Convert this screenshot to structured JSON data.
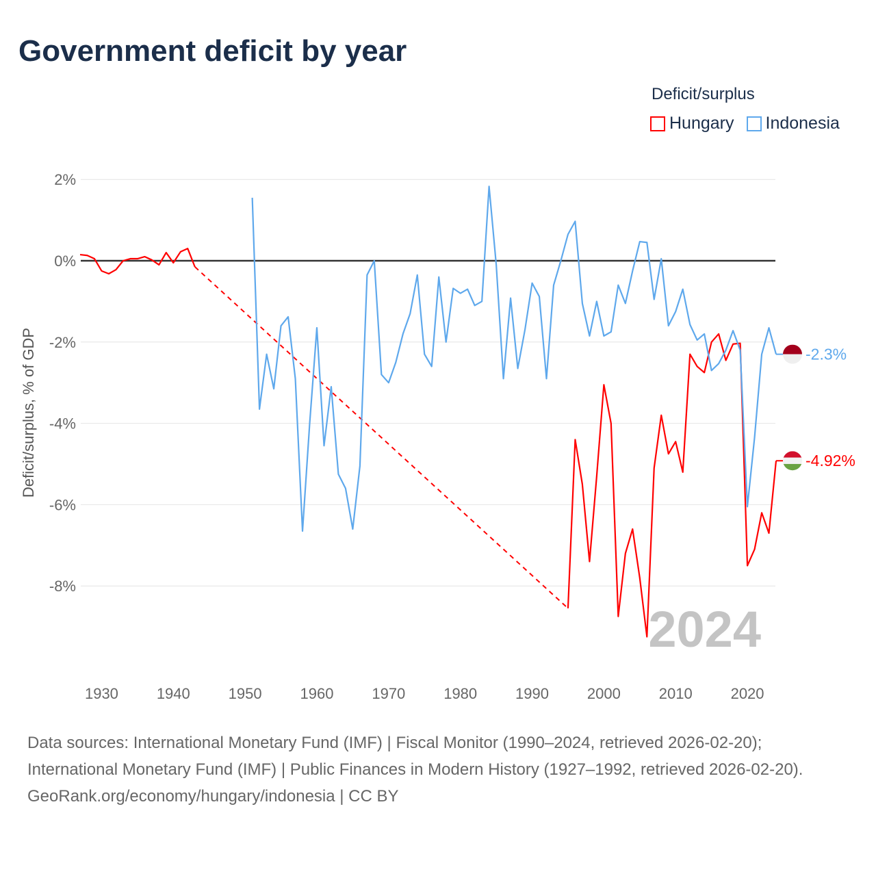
{
  "title": "Government deficit by year",
  "legend": {
    "title": "Deficit/surplus",
    "items": [
      {
        "label": "Hungary",
        "color": "#ff0000"
      },
      {
        "label": "Indonesia",
        "color": "#5ea8ec"
      }
    ]
  },
  "chart_data": {
    "type": "line",
    "title": "Government deficit by year",
    "xlabel": "",
    "ylabel": "Deficit/surplus, % of GDP",
    "xlim": [
      1927,
      2024
    ],
    "ylim": [
      -10,
      2.5
    ],
    "x_ticks": [
      1930,
      1940,
      1950,
      1960,
      1970,
      1980,
      1990,
      2000,
      2010,
      2020
    ],
    "y_ticks": [
      2,
      0,
      -2,
      -4,
      -6,
      -8
    ],
    "y_tick_labels": [
      "2%",
      "0%",
      "-2%",
      "-4%",
      "-6%",
      "-8%"
    ],
    "grid": true,
    "watermark_year": "2024",
    "series": [
      {
        "name": "Hungary",
        "color": "#ff0000",
        "end_label": "-4.92%",
        "x": [
          1927,
          1928,
          1929,
          1930,
          1931,
          1932,
          1933,
          1934,
          1935,
          1936,
          1937,
          1938,
          1939,
          1940,
          1941,
          1942,
          1943,
          1995,
          1996,
          1997,
          1998,
          1999,
          2000,
          2001,
          2002,
          2003,
          2004,
          2005,
          2006,
          2007,
          2008,
          2009,
          2010,
          2011,
          2012,
          2013,
          2014,
          2015,
          2016,
          2017,
          2018,
          2019,
          2020,
          2021,
          2022,
          2023,
          2024
        ],
        "values": [
          0.15,
          0.13,
          0.05,
          -0.25,
          -0.32,
          -0.22,
          0,
          0.05,
          0.05,
          0.1,
          0.02,
          -0.1,
          0.2,
          -0.05,
          0.22,
          0.3,
          -0.15,
          -8.55,
          -4.4,
          -5.5,
          -7.4,
          -5.3,
          -3.05,
          -4.0,
          -8.75,
          -7.2,
          -6.6,
          -7.8,
          -9.25,
          -5.1,
          -3.8,
          -4.75,
          -4.45,
          -5.2,
          -2.3,
          -2.6,
          -2.75,
          -2.0,
          -1.8,
          -2.45,
          -2.05,
          -2.03,
          -7.5,
          -7.1,
          -6.2,
          -6.7,
          -4.92
        ]
      },
      {
        "name": "Indonesia",
        "color": "#5ea8ec",
        "end_label": "-2.3%",
        "x": [
          1951,
          1952,
          1953,
          1954,
          1955,
          1956,
          1957,
          1958,
          1959,
          1960,
          1961,
          1962,
          1963,
          1964,
          1965,
          1966,
          1967,
          1968,
          1969,
          1970,
          1971,
          1972,
          1973,
          1974,
          1975,
          1976,
          1977,
          1978,
          1979,
          1980,
          1981,
          1982,
          1983,
          1984,
          1985,
          1986,
          1987,
          1988,
          1989,
          1990,
          1991,
          1992,
          1993,
          1994,
          1995,
          1996,
          1997,
          1998,
          1999,
          2000,
          2001,
          2002,
          2003,
          2004,
          2005,
          2006,
          2007,
          2008,
          2009,
          2010,
          2011,
          2012,
          2013,
          2014,
          2015,
          2016,
          2017,
          2018,
          2019,
          2020,
          2021,
          2022,
          2023,
          2024
        ],
        "values": [
          1.55,
          -3.65,
          -2.3,
          -3.15,
          -1.6,
          -1.38,
          -2.9,
          -6.65,
          -4.0,
          -1.65,
          -4.55,
          -3.1,
          -5.25,
          -5.6,
          -6.6,
          -5.05,
          -0.35,
          0.0,
          -2.8,
          -3.0,
          -2.5,
          -1.8,
          -1.3,
          -0.35,
          -2.3,
          -2.6,
          -0.4,
          -2.0,
          -0.68,
          -0.8,
          -0.7,
          -1.1,
          -1.0,
          1.83,
          -0.1,
          -2.9,
          -0.92,
          -2.65,
          -1.7,
          -0.55,
          -0.88,
          -2.9,
          -0.6,
          0.0,
          0.65,
          0.97,
          -1.05,
          -1.85,
          -1.0,
          -1.85,
          -1.75,
          -0.6,
          -1.05,
          -0.25,
          0.47,
          0.45,
          -0.95,
          0.05,
          -1.6,
          -1.25,
          -0.7,
          -1.57,
          -1.95,
          -1.8,
          -2.7,
          -2.53,
          -2.2,
          -1.72,
          -2.2,
          -6.05,
          -4.35,
          -2.3,
          -1.65,
          -2.3
        ]
      }
    ]
  },
  "footer": {
    "sources": "Data sources: International Monetary Fund (IMF) | Fiscal Monitor (1990–2024, retrieved 2026-02-20); International Monetary Fund (IMF) | Public Finances in Modern History (1927–1992, retrieved 2026-02-20).",
    "credit": "GeoRank.org/economy/hungary/indonesia | CC BY"
  }
}
